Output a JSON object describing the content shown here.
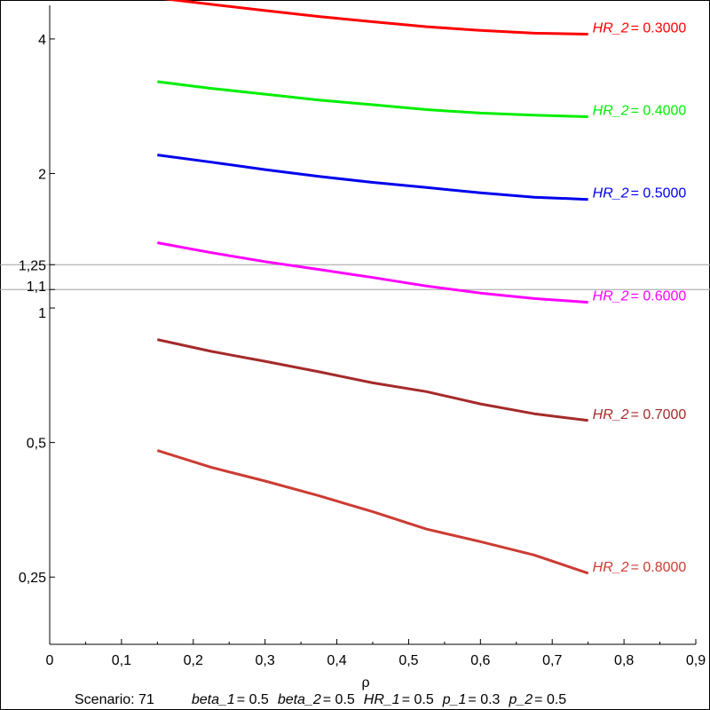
{
  "chart_data": {
    "type": "line",
    "xlabel": "ρ",
    "ylabel": "",
    "xlim": [
      0,
      0.9
    ],
    "ylim_log2": [
      -2.5,
      2.25
    ],
    "y_scale": "log",
    "x_ticks": [
      0,
      0.1,
      0.2,
      0.3,
      0.4,
      0.5,
      0.6,
      0.7,
      0.8,
      0.9
    ],
    "x_tick_labels": [
      "0",
      "0,1",
      "0,2",
      "0,3",
      "0,4",
      "0,5",
      "0,6",
      "0,7",
      "0,8",
      "0,9"
    ],
    "y_ticks": [
      {
        "value": 4,
        "label": "4"
      },
      {
        "value": 2,
        "label": "2"
      },
      {
        "value": 1.25,
        "label": "1,25"
      },
      {
        "value": 1.1,
        "label": "1,1"
      },
      {
        "value": 1,
        "label": "1"
      },
      {
        "value": 0.5,
        "label": "0,5"
      },
      {
        "value": 0.25,
        "label": "0,25"
      }
    ],
    "reference_lines": [
      1.25,
      1.1
    ],
    "reference_color": "#a0a0a0",
    "x": [
      0.15,
      0.225,
      0.3,
      0.375,
      0.45,
      0.525,
      0.6,
      0.675,
      0.75
    ],
    "series": [
      {
        "label_var": "HR_2",
        "label_value": "= 0.3000",
        "color": "#ff0000",
        "values": [
          4.94,
          4.78,
          4.63,
          4.49,
          4.37,
          4.26,
          4.18,
          4.12,
          4.1
        ]
      },
      {
        "label_var": "HR_2",
        "label_value": "= 0.4000",
        "color": "#00ee00",
        "values": [
          3.21,
          3.1,
          3.01,
          2.92,
          2.85,
          2.78,
          2.73,
          2.7,
          2.68
        ]
      },
      {
        "label_var": "HR_2",
        "label_value": "= 0.5000",
        "color": "#0000ee",
        "values": [
          2.2,
          2.12,
          2.04,
          1.97,
          1.91,
          1.86,
          1.81,
          1.77,
          1.75
        ]
      },
      {
        "label_var": "HR_2",
        "label_value": "= 0.6000",
        "color": "#ff00ff",
        "values": [
          1.4,
          1.33,
          1.27,
          1.22,
          1.17,
          1.12,
          1.08,
          1.05,
          1.03
        ]
      },
      {
        "label_var": "HR_2",
        "label_value": "= 0.7000",
        "color": "#a52a2a",
        "values": [
          0.85,
          0.8,
          0.76,
          0.72,
          0.68,
          0.65,
          0.61,
          0.58,
          0.56
        ]
      },
      {
        "label_var": "HR_2",
        "label_value": "= 0.8000",
        "color": "#cd3b33",
        "values": [
          0.48,
          0.44,
          0.41,
          0.38,
          0.35,
          0.32,
          0.3,
          0.28,
          0.255
        ]
      }
    ]
  },
  "footer": {
    "scenario": "Scenario: 71",
    "params": [
      {
        "name": "beta_1",
        "value": "= 0.5"
      },
      {
        "name": "beta_2",
        "value": "= 0.5"
      },
      {
        "name": "HR_1",
        "value": "= 0.5"
      },
      {
        "name": "p_1",
        "value": "= 0.3"
      },
      {
        "name": "p_2",
        "value": "= 0.5"
      }
    ]
  }
}
